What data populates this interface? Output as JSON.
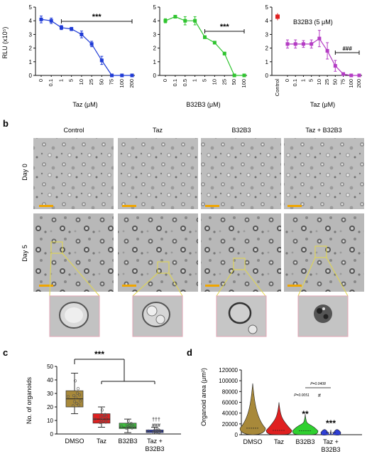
{
  "panel_a": {
    "charts": [
      {
        "type": "line",
        "ylabel": "RLU (x10⁵)",
        "ylim": [
          0,
          5
        ],
        "yticks": [
          "0",
          "1",
          "2",
          "3",
          "4",
          "5"
        ],
        "xlabel": "Taz (μM)",
        "categories": [
          "0",
          "0.1",
          "1",
          "5",
          "10",
          "25",
          "50",
          "75",
          "100",
          "200"
        ],
        "values": [
          4.1,
          4.0,
          3.5,
          3.4,
          3.0,
          2.3,
          1.1,
          0.0,
          0.0,
          0.0
        ],
        "errors": [
          0.25,
          0.2,
          0.15,
          0.12,
          0.25,
          0.2,
          0.3,
          0,
          0,
          0
        ],
        "color": "#1f3bd6",
        "sig": "***"
      },
      {
        "type": "line",
        "ylim": [
          0,
          5
        ],
        "yticks": [
          "0",
          "1",
          "2",
          "3",
          "4",
          "5"
        ],
        "xlabel": "B32B3 (μM)",
        "categories": [
          "0",
          "0.1",
          "0.5",
          "1",
          "5",
          "10",
          "25",
          "50",
          "100"
        ],
        "values": [
          4.0,
          4.3,
          4.0,
          4.0,
          2.8,
          2.4,
          1.6,
          0.0,
          0.0
        ],
        "errors": [
          0.15,
          0.1,
          0.3,
          0.3,
          0.1,
          0.1,
          0.1,
          0,
          0
        ],
        "color": "#2fc42f",
        "sig": "***"
      },
      {
        "type": "line",
        "ylim": [
          0,
          5
        ],
        "yticks": [
          "0",
          "1",
          "2",
          "3",
          "4",
          "5"
        ],
        "xlabel": "Taz (μM)",
        "legend": "B32B3 (5 μM)",
        "control_label": "Control",
        "control_value": 4.3,
        "control_color": "#e02020",
        "categories": [
          "0",
          "0.1",
          "1",
          "5",
          "10",
          "25",
          "50",
          "75",
          "100",
          "200"
        ],
        "values": [
          2.3,
          2.3,
          2.3,
          2.3,
          2.7,
          1.8,
          0.7,
          0.1,
          0.0,
          0.0
        ],
        "errors": [
          0.3,
          0.3,
          0.25,
          0.3,
          0.6,
          0.6,
          0.4,
          0.1,
          0,
          0
        ],
        "color": "#b43cc4",
        "sig": "###"
      }
    ]
  },
  "panel_b": {
    "letter": "b",
    "columns": [
      "Control",
      "Taz",
      "B32B3",
      "Taz + B32B3"
    ],
    "rows": [
      "Day 0",
      "Day 5"
    ]
  },
  "panel_c": {
    "letter": "c",
    "ylabel": "No. of organoids",
    "ylim": [
      0,
      50
    ],
    "yticks": [
      "0",
      "10",
      "20",
      "30",
      "40",
      "50"
    ],
    "categories": [
      "DMSO",
      "Taz",
      "B32B3",
      "Taz +",
      "B32B3"
    ],
    "sig": "***",
    "sig_extra": [
      "†††",
      "###"
    ],
    "boxes": [
      {
        "min": 15,
        "q1": 20,
        "median": 26,
        "q3": 32,
        "max": 45,
        "color": "#a8893a"
      },
      {
        "min": 5,
        "q1": 8,
        "median": 11,
        "q3": 15,
        "max": 20,
        "color": "#e02020"
      },
      {
        "min": 1,
        "q1": 4,
        "median": 5,
        "q3": 8,
        "max": 11,
        "color": "#3cbf3c"
      },
      {
        "min": 0,
        "q1": 1,
        "median": 2,
        "q3": 3,
        "max": 5,
        "color": "#3b4fd6"
      }
    ]
  },
  "panel_d": {
    "letter": "d",
    "ylabel": "Organoid area (μm²)",
    "ylim": [
      0,
      120000
    ],
    "yticks": [
      "0",
      "20000",
      "40000",
      "60000",
      "80000",
      "100000",
      "120000"
    ],
    "categories": [
      "DMSO",
      "Taz",
      "B32B3",
      "Taz +",
      "B32B3"
    ],
    "violins": [
      {
        "max": 95000,
        "median": 12000,
        "color": "#a8893a"
      },
      {
        "max": 60000,
        "median": 8000,
        "color": "#e02020"
      },
      {
        "max": 38000,
        "median": 7000,
        "color": "#2fd02f"
      },
      {
        "max": 9000,
        "median": 4000,
        "color": "#2f3fd6"
      }
    ],
    "annotations": {
      "p1": "P=0.0051",
      "p2": "P=0.0408",
      "hash": "#",
      "b32b3_sig": "**",
      "combo_sig": "***"
    }
  },
  "panel_a_letter": ""
}
